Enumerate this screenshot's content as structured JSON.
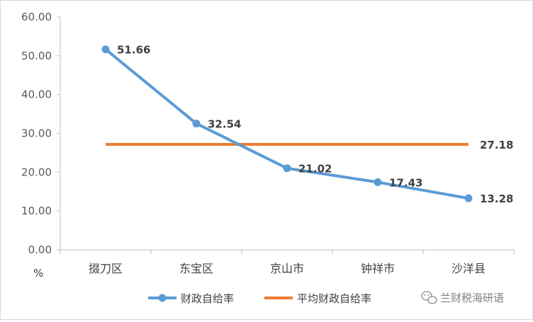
{
  "chart_data": {
    "type": "line",
    "categories": [
      "掇刀区",
      "东宝区",
      "京山市",
      "钟祥市",
      "沙洋县"
    ],
    "series": [
      {
        "name": "财政自给率",
        "values": [
          51.66,
          32.54,
          21.02,
          17.43,
          13.28
        ],
        "color": "#5b9bd5",
        "marker": "circle",
        "data_labels": [
          "51.66",
          "32.54",
          "21.02",
          "17.43",
          "13.28"
        ]
      },
      {
        "name": "平均财政自给率",
        "values": [
          27.18,
          27.18,
          27.18,
          27.18,
          27.18
        ],
        "color": "#ed7d31",
        "marker": "none",
        "end_label": "27.18"
      }
    ],
    "ylabel": "%",
    "ylim": [
      0,
      60
    ],
    "yticks": [
      "0.00",
      "10.00",
      "20.00",
      "30.00",
      "40.00",
      "50.00",
      "60.00"
    ],
    "grid": false,
    "legend": "bottom"
  },
  "watermark": {
    "icon": "wechat-icon",
    "text": "兰财税海研语"
  }
}
